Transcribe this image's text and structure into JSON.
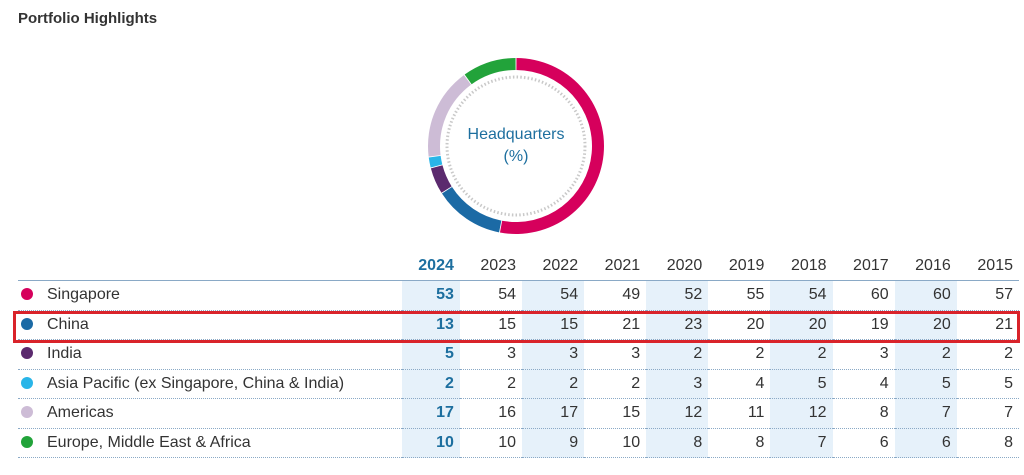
{
  "page": {
    "title": "Portfolio Highlights"
  },
  "chart_data": {
    "type": "pie",
    "title": "Headquarters",
    "unit": "(%)",
    "year": "2024",
    "categories": [
      "Singapore",
      "China",
      "India",
      "Asia Pacific (ex Singapore, China & India)",
      "Americas",
      "Europe, Middle East & Africa"
    ],
    "values": [
      53,
      13,
      5,
      2,
      17,
      10
    ],
    "colors": [
      "#d6005c",
      "#1b6aa5",
      "#5b2a6e",
      "#29b5e8",
      "#cdbcd6",
      "#22a33a"
    ]
  },
  "table": {
    "years": [
      "2024",
      "2023",
      "2022",
      "2021",
      "2020",
      "2019",
      "2018",
      "2017",
      "2016",
      "2015"
    ],
    "rows": [
      {
        "label": "Singapore",
        "color": "#d6005c",
        "values": [
          "53",
          "54",
          "54",
          "49",
          "52",
          "55",
          "54",
          "60",
          "60",
          "57"
        ]
      },
      {
        "label": "China",
        "color": "#1b6aa5",
        "values": [
          "13",
          "15",
          "15",
          "21",
          "23",
          "20",
          "20",
          "19",
          "20",
          "21"
        ]
      },
      {
        "label": "India",
        "color": "#5b2a6e",
        "values": [
          "5",
          "3",
          "3",
          "3",
          "2",
          "2",
          "2",
          "3",
          "2",
          "2"
        ]
      },
      {
        "label": "Asia Pacific (ex Singapore, China & India)",
        "color": "#29b5e8",
        "values": [
          "2",
          "2",
          "2",
          "2",
          "3",
          "4",
          "5",
          "4",
          "5",
          "5"
        ]
      },
      {
        "label": "Americas",
        "color": "#cdbcd6",
        "values": [
          "17",
          "16",
          "17",
          "15",
          "12",
          "11",
          "12",
          "8",
          "7",
          "7"
        ]
      },
      {
        "label": "Europe, Middle East & Africa",
        "color": "#22a33a",
        "values": [
          "10",
          "10",
          "9",
          "10",
          "8",
          "8",
          "7",
          "6",
          "6",
          "8"
        ]
      }
    ]
  }
}
